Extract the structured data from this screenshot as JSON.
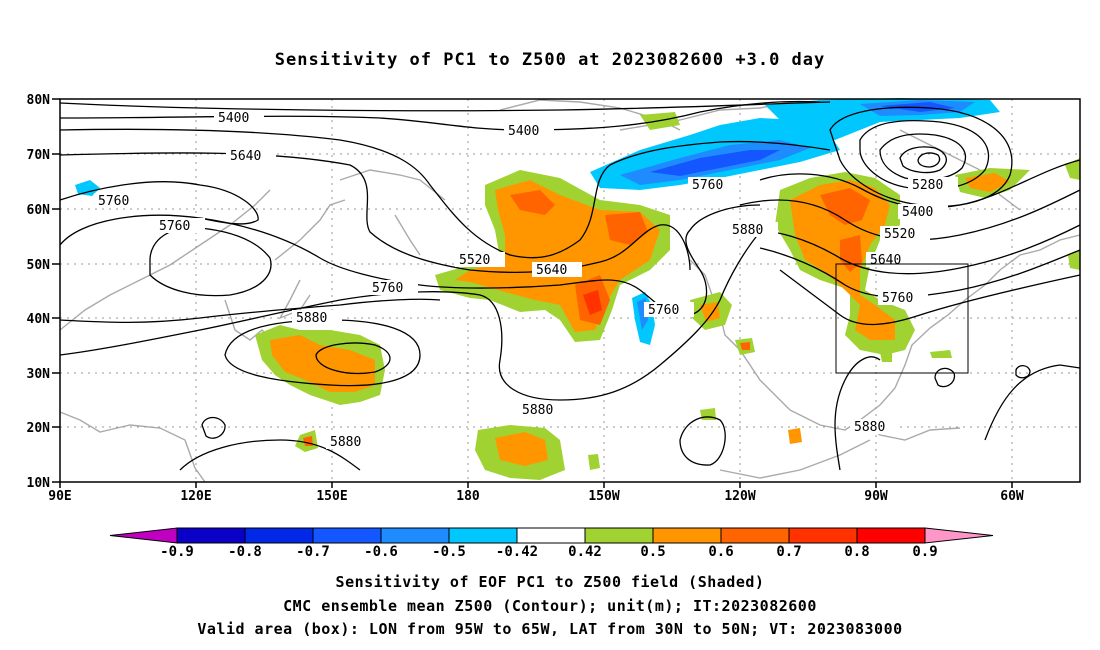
{
  "title": "Sensitivity of PC1 to Z500 at 2023082600 +3.0 day",
  "lat_labels": [
    "80N",
    "70N",
    "60N",
    "50N",
    "40N",
    "30N",
    "20N",
    "10N"
  ],
  "lon_labels": [
    "90E",
    "120E",
    "150E",
    "180",
    "150W",
    "120W",
    "90W",
    "60W"
  ],
  "contour_labels": [
    "5400",
    "5400",
    "5640",
    "5760",
    "5760",
    "5520",
    "5640",
    "5760",
    "5880",
    "5880",
    "5760",
    "5760",
    "5880",
    "5280",
    "5400",
    "5520",
    "5640",
    "5760",
    "5880",
    "5880"
  ],
  "colorbar": {
    "labels": [
      "-0.9",
      "-0.8",
      "-0.7",
      "-0.6",
      "-0.5",
      "-0.42",
      "0.42",
      "0.5",
      "0.6",
      "0.7",
      "0.8",
      "0.9"
    ],
    "colors": [
      "#c000c0",
      "#0a00c8",
      "#0028e6",
      "#1456ff",
      "#1e8cff",
      "#00c8ff",
      "#ffffff",
      "#a0d232",
      "#ff9600",
      "#ff6400",
      "#ff3200",
      "#ff0000",
      "#ff96c8"
    ]
  },
  "valid_box": {
    "lon_min": -95,
    "lon_max": -65,
    "lat_min": 30,
    "lat_max": 50
  },
  "captions": {
    "line1": "Sensitivity of EOF PC1 to Z500 field (Shaded)",
    "line2": "CMC ensemble mean Z500 (Contour); unit(m); IT:2023082600",
    "line3": "Valid area (box): LON from 95W to 65W, LAT from 30N to 50N; VT: 2023083000"
  }
}
